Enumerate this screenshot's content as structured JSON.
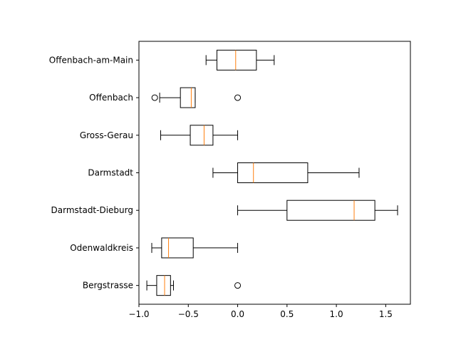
{
  "chart_data": {
    "type": "boxplot",
    "orientation": "horizontal",
    "title": "",
    "xlabel": "",
    "ylabel": "",
    "xlim": [
      -1.0,
      1.75
    ],
    "xticks": [
      -1.0,
      -0.5,
      0.0,
      0.5,
      1.0,
      1.5
    ],
    "xtick_labels": [
      "−1.0",
      "−0.5",
      "0.0",
      "0.5",
      "1.0",
      "1.5"
    ],
    "grid": false,
    "colors": {
      "box": "#000000",
      "median": "#ff7f0e",
      "background": "#ffffff"
    },
    "categories": [
      {
        "label": "Offenbach-am-Main",
        "whislo": -0.32,
        "q1": -0.21,
        "med": -0.02,
        "q3": 0.19,
        "whishi": 0.37,
        "fliers": []
      },
      {
        "label": "Offenbach",
        "whislo": -0.79,
        "q1": -0.58,
        "med": -0.47,
        "q3": -0.43,
        "whishi": -0.43,
        "fliers": [
          -0.84,
          0.0
        ]
      },
      {
        "label": "Gross-Gerau",
        "whislo": -0.78,
        "q1": -0.48,
        "med": -0.34,
        "q3": -0.25,
        "whishi": 0.0,
        "fliers": []
      },
      {
        "label": "Darmstadt",
        "whislo": -0.25,
        "q1": 0.0,
        "med": 0.16,
        "q3": 0.71,
        "whishi": 1.23,
        "fliers": []
      },
      {
        "label": "Darmstadt-Dieburg",
        "whislo": 0.0,
        "q1": 0.5,
        "med": 1.18,
        "q3": 1.39,
        "whishi": 1.62,
        "fliers": []
      },
      {
        "label": "Odenwaldkreis",
        "whislo": -0.87,
        "q1": -0.77,
        "med": -0.7,
        "q3": -0.45,
        "whishi": 0.0,
        "fliers": []
      },
      {
        "label": "Bergstrasse",
        "whislo": -0.92,
        "q1": -0.82,
        "med": -0.74,
        "q3": -0.68,
        "whishi": -0.65,
        "fliers": [
          0.0
        ]
      }
    ]
  }
}
